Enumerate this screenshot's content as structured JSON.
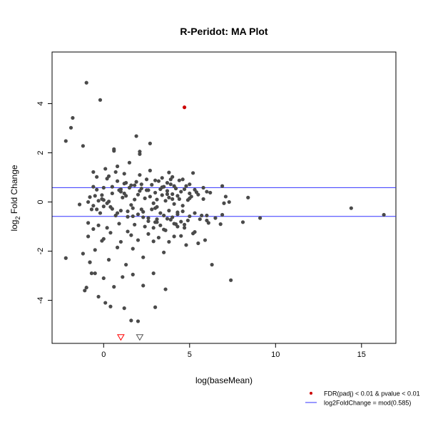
{
  "chart_data": {
    "type": "scatter",
    "title": "R-Peridot: MA Plot",
    "xlabel": "log(baseMean)",
    "ylabel": "log2 Fold Change",
    "ylabel_parts": {
      "base": "log",
      "sub": "2",
      "rest": " Fold Change"
    },
    "xlim": [
      -3,
      17
    ],
    "ylim": [
      -5.75,
      6.1
    ],
    "x_ticks": [
      0,
      5,
      10,
      15
    ],
    "x_tick_labels": [
      "0",
      "5",
      "10",
      "15"
    ],
    "y_ticks": [
      -4,
      -2,
      0,
      2,
      4
    ],
    "y_tick_labels": [
      "-4",
      "-2",
      "0",
      "2",
      "4"
    ],
    "grid": false,
    "legend_position": "bottom-right",
    "colors": {
      "points": "#4a4a4a",
      "significant": "#cc0000",
      "threshold_line": "#3333ff",
      "open_triangle_red": "#ff0000",
      "open_triangle_gray": "#555555"
    },
    "legend": [
      {
        "label": "FDR(padj) < 0.01 & pvalue < 0.01",
        "marker": "point",
        "color": "#cc0000"
      },
      {
        "label": "log2FoldChange = mod(0.585)",
        "marker": "line",
        "color": "#3333ff"
      }
    ],
    "hlines": [
      0.585,
      -0.585
    ],
    "significant_points": [
      {
        "x": 4.7,
        "y": 3.85
      }
    ],
    "out_of_range_points": [
      {
        "x": 1.0,
        "y": -5.5,
        "color": "#ff0000"
      },
      {
        "x": 2.1,
        "y": -5.5,
        "color": "#555555"
      }
    ],
    "series": [
      {
        "x": [
          -1.0,
          -0.2,
          -1.8,
          -2.2,
          -1.9,
          -1.2,
          -0.6,
          -0.6,
          -0.3,
          -0.9,
          -0.5,
          0.6,
          0.6,
          0.7,
          0.3,
          0.2,
          1.2,
          1.3,
          1.9,
          2.1,
          2.1,
          2.7,
          3.0,
          3.8,
          3.9,
          4.2,
          5.2,
          -0.8,
          -0.1,
          0.0,
          0.3,
          0.5,
          0.8,
          1.0,
          1.1,
          1.3,
          1.5,
          1.6,
          1.8,
          2.0,
          2.2,
          2.4,
          2.5,
          2.7,
          2.9,
          3.0,
          3.1,
          3.3,
          3.4,
          3.5,
          3.6,
          3.7,
          3.8,
          3.9,
          4.0,
          4.1,
          4.2,
          4.3,
          4.4,
          4.5,
          4.6,
          4.8,
          4.9,
          5.0,
          5.1,
          5.3,
          5.5,
          5.8,
          6.0,
          6.2,
          6.9,
          7.1,
          7.3,
          8.4,
          -0.7,
          -0.2,
          0.4,
          0.7,
          1.0,
          1.4,
          1.7,
          2.0,
          2.3,
          2.6,
          2.8,
          3.1,
          3.3,
          3.5,
          3.8,
          4.0,
          4.3,
          4.6,
          5.0,
          5.3,
          5.6,
          6.0,
          6.5,
          6.9,
          0.0,
          0.5,
          0.9,
          1.2,
          1.6,
          1.9,
          2.2,
          2.5,
          2.8,
          3.2,
          3.4,
          3.7,
          4.1,
          4.4,
          4.7,
          5.0,
          5.4,
          5.8,
          -0.4,
          0.1,
          0.8,
          1.5,
          2.1,
          2.7,
          3.4,
          4.0,
          4.6,
          -0.9,
          -0.6,
          -0.3,
          0.2,
          0.9,
          1.4,
          1.8,
          2.4,
          3.0,
          3.6,
          4.2,
          4.7,
          5.3,
          6.0,
          6.8,
          -0.9,
          0.0,
          0.4,
          1.0,
          1.6,
          2.0,
          2.6,
          3.2,
          3.8,
          4.5,
          5.2,
          5.9,
          -1.2,
          -0.8,
          -0.5,
          -0.1,
          0.3,
          0.8,
          1.3,
          1.7,
          2.3,
          2.9,
          3.5,
          4.1,
          4.8,
          5.5,
          -0.5,
          0.0,
          0.6,
          1.1,
          1.7,
          2.3,
          2.9,
          3.6,
          -2.2,
          -1.1,
          -1.0,
          -0.8,
          -0.7,
          -0.3,
          0.1,
          0.4,
          1.2,
          1.6,
          2.0,
          3.0,
          -0.6,
          -0.4,
          0.0,
          0.5,
          1.0,
          1.4,
          1.8,
          2.2,
          2.6,
          3.1,
          3.7,
          4.3,
          5.0,
          -1.4,
          -0.4,
          -0.1,
          0.2,
          0.8,
          1.2,
          1.7,
          2.1,
          3.0,
          4.0,
          6.3,
          7.4,
          8.1,
          9.1,
          14.4,
          16.3,
          7.0,
          6.1,
          5.7,
          2.3,
          2.6,
          2.9,
          3.1,
          3.3,
          3.5,
          3.7,
          3.9,
          4.1,
          4.3,
          4.5,
          4.7,
          4.9
        ],
        "y": [
          4.85,
          4.15,
          3.42,
          2.48,
          3.02,
          2.28,
          1.22,
          0.62,
          0.05,
          0.0,
          0.25,
          2.15,
          2.08,
          1.22,
          1.05,
          0.95,
          1.15,
          0.78,
          2.68,
          1.95,
          2.05,
          2.38,
          0.88,
          1.2,
          0.92,
          0.55,
          1.18,
          0.2,
          0.12,
          -0.18,
          0.02,
          0.35,
          0.85,
          0.42,
          0.18,
          0.25,
          0.58,
          -0.12,
          0.68,
          0.3,
          0.72,
          0.15,
          0.48,
          0.22,
          -0.05,
          0.38,
          0.1,
          0.52,
          0.28,
          0.62,
          0.05,
          0.45,
          0.18,
          0.72,
          0.32,
          -0.08,
          0.55,
          0.25,
          0.12,
          0.42,
          -0.15,
          0.65,
          0.08,
          0.35,
          0.22,
          0.5,
          0.3,
          0.12,
          0.42,
          0.38,
          0.65,
          0.22,
          0.0,
          0.18,
          -0.3,
          -0.45,
          -0.2,
          -0.55,
          -0.35,
          -0.6,
          -0.25,
          -0.5,
          -0.4,
          -0.65,
          -0.3,
          -0.7,
          -0.45,
          -0.55,
          -0.35,
          -0.62,
          -0.5,
          -0.38,
          -0.58,
          -0.45,
          -0.7,
          -0.55,
          -0.65,
          -0.52,
          0.58,
          0.62,
          0.48,
          0.75,
          0.68,
          0.82,
          0.55,
          0.92,
          0.7,
          0.85,
          0.6,
          0.78,
          0.65,
          0.88,
          0.52,
          0.72,
          0.4,
          0.58,
          1.02,
          1.35,
          1.45,
          1.6,
          1.1,
          1.28,
          0.98,
          1.02,
          0.92,
          -0.85,
          -1.1,
          -0.95,
          -1.05,
          -0.88,
          -1.2,
          -0.92,
          -1.0,
          -0.82,
          -1.15,
          -0.9,
          -1.05,
          -1.22,
          -0.75,
          -0.9,
          -1.4,
          -1.5,
          -1.25,
          -1.62,
          -1.35,
          -1.55,
          -1.3,
          -1.45,
          -1.62,
          -1.38,
          -1.28,
          -1.55,
          -2.1,
          -2.45,
          -1.95,
          -1.58,
          -2.35,
          -1.85,
          -2.55,
          -1.9,
          -2.25,
          -1.6,
          -2.05,
          -1.4,
          -1.75,
          -1.68,
          -2.9,
          -3.1,
          -3.45,
          -3.05,
          -2.95,
          -3.4,
          -2.9,
          -3.55,
          -2.28,
          -3.6,
          -3.48,
          -2.45,
          -2.9,
          -3.85,
          -4.1,
          -4.25,
          -4.32,
          -4.82,
          -4.85,
          -4.28,
          -0.15,
          0.5,
          0.08,
          -0.28,
          0.52,
          -0.38,
          0.1,
          -0.3,
          0.48,
          -0.2,
          0.32,
          -0.42,
          0.15,
          -0.1,
          -0.3,
          0.28,
          -0.05,
          -0.45,
          0.35,
          -0.58,
          0.45,
          -0.25,
          0.12,
          -2.55,
          -3.18,
          -0.82,
          -0.65,
          -0.25,
          -0.52,
          -0.05,
          -0.85,
          -0.55,
          -0.62,
          -0.78,
          -1.05,
          -0.82,
          -0.95,
          -1.12,
          -0.68,
          -0.72,
          -0.88,
          -1.0,
          -0.8,
          -0.92,
          -0.75
        ]
      }
    ]
  }
}
